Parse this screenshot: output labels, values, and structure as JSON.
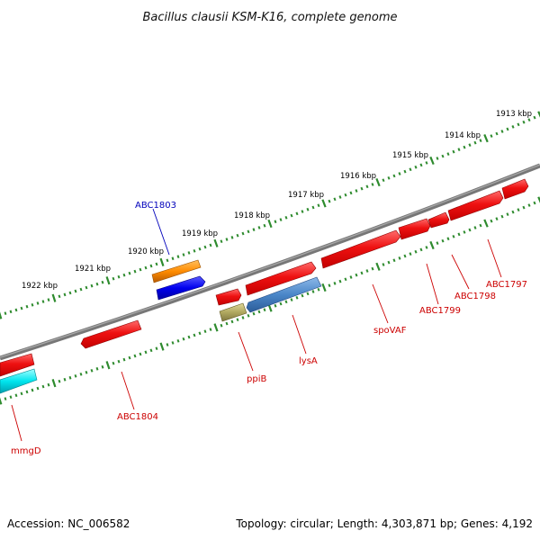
{
  "title": "Bacillus clausii KSM-K16, complete genome",
  "footer": {
    "accession": "Accession: NC_006582",
    "summary": "Topology: circular; Length: 4,303,871 bp; Genes: 4,192"
  },
  "kbp_labels": [
    "1922 kbp",
    "1921 kbp",
    "1920 kbp",
    "1919 kbp",
    "1918 kbp",
    "1917 kbp",
    "1916 kbp",
    "1915 kbp",
    "1914 kbp",
    "1913 kbp"
  ],
  "gene_labels": {
    "abc1803": "ABC1803",
    "ppib": "ppiB",
    "lysa": "lysA",
    "spovaf": "spoVAF",
    "abc1799": "ABC1799",
    "abc1798": "ABC1798",
    "abc1797": "ABC1797",
    "abc1804": "ABC1804",
    "mmgd": "mmgD"
  },
  "colors": {
    "backbone": "#777777",
    "ticks": "#2e8b2e",
    "cds": "#ee1111",
    "rna": "#ff8c00",
    "blue": "#0000ee",
    "cyan": "#00e5ee",
    "khaki": "#b0a860",
    "steel": "#4a86c8",
    "label_red": "#cc0000",
    "label_blue": "#0000bb"
  }
}
